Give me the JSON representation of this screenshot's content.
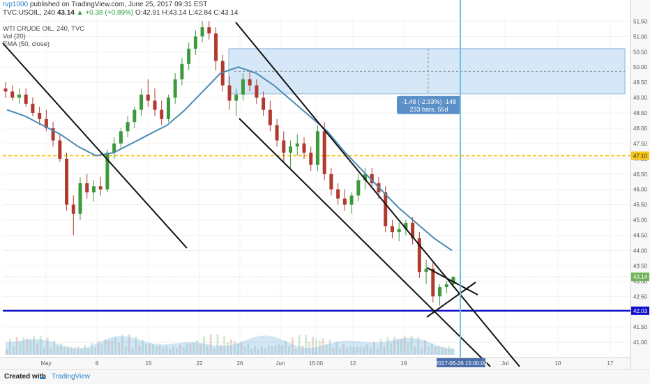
{
  "header": {
    "user": "rvp1000",
    "published_text": "published on TradingView.com, June 25, 2017 09:31 EST",
    "symbol_line_prefix": "TVC:USOIL, 240",
    "last": "43.14",
    "change": "+0.38 (+0.89%)",
    "ohlc_o": "O:42.91",
    "ohlc_h": "H:43.14",
    "ohlc_l": "L:42.84",
    "ohlc_c": "C:43.14"
  },
  "legend": {
    "title": "WTI CRUDE OIL, 240, TVC",
    "vol": "Vol (20)",
    "ema": "EMA (50, close)"
  },
  "measure": {
    "line1": "-1.48 (-2.93%) -148",
    "line2": "233 bars, 55d"
  },
  "cursor_date_label": "2017-06-26 15:00:00",
  "footer": {
    "created_with": "Created with",
    "brand": "TradingView"
  },
  "colors": {
    "up": "#3c9a3c",
    "down": "#b03a2e",
    "ema": "#4a8ab3",
    "support": "#1010c8",
    "dashed_level": "#f5c518",
    "cursor": "#6cc4d8",
    "measure_box": "#cfe4f7",
    "measure_label": "#5b8fc7"
  },
  "chart_data": {
    "type": "candlestick",
    "ylim": [
      40.5,
      51.6
    ],
    "y_ticks": [
      "41.00",
      "41.50",
      "42.00",
      "42.50",
      "43.00",
      "43.50",
      "44.00",
      "44.50",
      "45.00",
      "45.50",
      "46.00",
      "46.50",
      "47.00",
      "47.50",
      "48.00",
      "48.50",
      "49.00",
      "49.50",
      "50.00",
      "50.50",
      "51.00",
      "51.50"
    ],
    "x_ticks": [
      "May",
      "8",
      "15",
      "22",
      "26",
      "Jun",
      "15:00",
      "12",
      "19",
      "Jul",
      "10",
      "17"
    ],
    "last_price": "43.14",
    "level_labels": {
      "dashed": "47.10",
      "support": "42.03"
    },
    "horizontal_levels": [
      47.1,
      42.03
    ],
    "ema_50": [
      48.6,
      48.4,
      48.1,
      47.8,
      47.4,
      47.1,
      47.2,
      47.5,
      47.8,
      48.1,
      48.6,
      49.2,
      49.8,
      50.0,
      49.8,
      49.4,
      48.9,
      48.4,
      47.9,
      47.2,
      46.6,
      46.0,
      45.4,
      44.9,
      44.4,
      44.0
    ],
    "candles": [
      [
        49.3,
        49.5,
        49.0,
        49.2
      ],
      [
        49.2,
        49.4,
        48.9,
        49.0
      ],
      [
        49.0,
        49.3,
        48.8,
        49.1
      ],
      [
        49.1,
        49.3,
        48.7,
        48.8
      ],
      [
        48.8,
        49.0,
        48.4,
        48.5
      ],
      [
        48.5,
        48.7,
        48.1,
        48.3
      ],
      [
        48.3,
        48.6,
        47.9,
        48.0
      ],
      [
        48.0,
        48.2,
        47.4,
        47.6
      ],
      [
        47.6,
        47.8,
        46.9,
        47.0
      ],
      [
        47.0,
        47.2,
        45.3,
        45.5
      ],
      [
        45.5,
        45.8,
        44.5,
        45.2
      ],
      [
        45.2,
        46.4,
        45.0,
        46.2
      ],
      [
        46.2,
        46.5,
        45.7,
        45.9
      ],
      [
        45.9,
        46.3,
        45.6,
        46.1
      ],
      [
        46.1,
        46.4,
        45.8,
        46.0
      ],
      [
        46.0,
        47.3,
        45.9,
        47.2
      ],
      [
        47.2,
        47.7,
        47.0,
        47.5
      ],
      [
        47.5,
        48.0,
        47.3,
        47.9
      ],
      [
        47.9,
        48.4,
        47.7,
        48.2
      ],
      [
        48.2,
        48.7,
        48.0,
        48.6
      ],
      [
        48.6,
        49.3,
        48.4,
        49.1
      ],
      [
        49.1,
        49.6,
        48.7,
        48.9
      ],
      [
        48.9,
        49.3,
        48.4,
        48.6
      ],
      [
        48.6,
        48.9,
        48.1,
        48.3
      ],
      [
        48.3,
        49.1,
        48.2,
        49.0
      ],
      [
        49.0,
        49.8,
        48.8,
        49.6
      ],
      [
        49.6,
        50.3,
        49.4,
        50.1
      ],
      [
        50.1,
        50.8,
        49.9,
        50.6
      ],
      [
        50.6,
        51.2,
        50.4,
        51.0
      ],
      [
        51.0,
        51.5,
        50.8,
        51.3
      ],
      [
        51.3,
        51.5,
        50.9,
        51.1
      ],
      [
        51.1,
        51.3,
        49.9,
        50.2
      ],
      [
        50.2,
        50.4,
        49.2,
        49.4
      ],
      [
        49.4,
        49.7,
        48.6,
        48.9
      ],
      [
        48.9,
        49.3,
        48.4,
        49.1
      ],
      [
        49.1,
        49.8,
        48.9,
        49.6
      ],
      [
        49.6,
        49.9,
        49.2,
        49.4
      ],
      [
        49.4,
        49.6,
        48.8,
        49.0
      ],
      [
        49.0,
        49.2,
        48.4,
        48.6
      ],
      [
        48.6,
        48.9,
        47.9,
        48.1
      ],
      [
        48.1,
        48.3,
        47.4,
        47.6
      ],
      [
        47.6,
        47.9,
        46.9,
        47.2
      ],
      [
        47.2,
        47.6,
        46.7,
        47.4
      ],
      [
        47.4,
        47.8,
        47.1,
        47.5
      ],
      [
        47.5,
        47.7,
        47.0,
        47.2
      ],
      [
        47.2,
        47.4,
        46.6,
        46.8
      ],
      [
        46.8,
        48.1,
        46.6,
        47.9
      ],
      [
        47.9,
        48.2,
        46.3,
        46.5
      ],
      [
        46.5,
        46.7,
        45.8,
        46.0
      ],
      [
        46.0,
        46.2,
        45.5,
        45.7
      ],
      [
        45.7,
        46.0,
        45.3,
        45.5
      ],
      [
        45.5,
        45.9,
        45.2,
        45.8
      ],
      [
        45.8,
        46.5,
        45.6,
        46.3
      ],
      [
        46.3,
        46.7,
        46.0,
        46.5
      ],
      [
        46.5,
        46.7,
        46.1,
        46.2
      ],
      [
        46.2,
        46.4,
        45.7,
        45.9
      ],
      [
        45.9,
        46.1,
        44.6,
        44.8
      ],
      [
        44.8,
        45.0,
        44.4,
        44.6
      ],
      [
        44.6,
        44.9,
        44.3,
        44.7
      ],
      [
        44.7,
        45.0,
        44.5,
        44.9
      ],
      [
        44.9,
        45.1,
        44.2,
        44.4
      ],
      [
        44.4,
        44.6,
        43.1,
        43.3
      ],
      [
        43.3,
        43.7,
        42.9,
        43.4
      ],
      [
        43.4,
        43.6,
        42.3,
        42.5
      ],
      [
        42.5,
        42.9,
        42.2,
        42.8
      ],
      [
        42.8,
        43.0,
        42.6,
        42.9
      ],
      [
        42.9,
        43.14,
        42.84,
        43.14
      ]
    ]
  }
}
